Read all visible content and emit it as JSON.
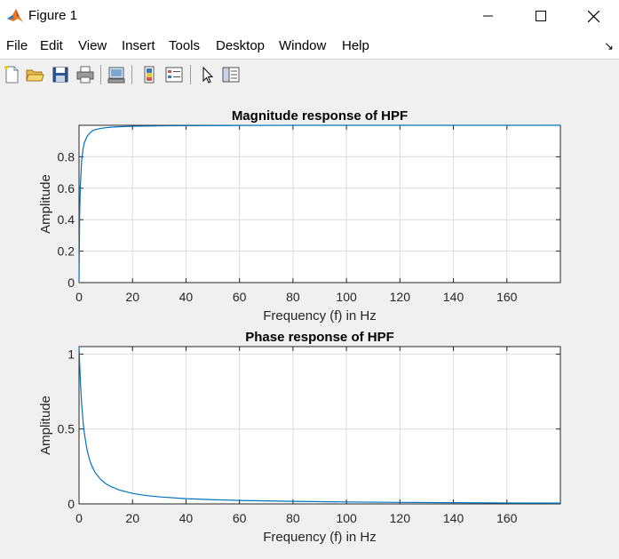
{
  "window": {
    "title": "Figure 1"
  },
  "menu": {
    "items": [
      "File",
      "Edit",
      "View",
      "Insert",
      "Tools",
      "Desktop",
      "Window",
      "Help"
    ]
  },
  "toolbar": {
    "icons": [
      "new-figure-icon",
      "open-file-icon",
      "save-icon",
      "print-icon",
      "link-plot-icon",
      "insert-colorbar-icon",
      "insert-legend-icon",
      "edit-plot-icon",
      "property-inspector-icon"
    ]
  },
  "colors": {
    "line": "#0072bd",
    "grid": "#dcdcdc",
    "axes_bg": "#ffffff",
    "figure_bg": "#f0f0f0"
  },
  "chart_data": [
    {
      "type": "line",
      "title": "Magnitude response of HPF",
      "xlabel": "Frequency (f) in Hz",
      "ylabel": "Amplitude",
      "xlim": [
        0,
        180
      ],
      "ylim": [
        0,
        1
      ],
      "xticks": [
        0,
        20,
        40,
        60,
        80,
        100,
        120,
        140,
        160
      ],
      "yticks": [
        0,
        0.2,
        0.4,
        0.6,
        0.8
      ],
      "ytick_labels": [
        "0",
        "0.2",
        "0.4",
        "0.6",
        "0.8"
      ],
      "grid": true,
      "series": [
        {
          "x": [
            0,
            0.25,
            0.5,
            1,
            1.5,
            2,
            3,
            4,
            5,
            6,
            8,
            10,
            12,
            15,
            20,
            30,
            40,
            60,
            80,
            100,
            120,
            140,
            160,
            180
          ],
          "y": [
            0,
            0.45,
            0.62,
            0.78,
            0.85,
            0.89,
            0.93,
            0.95,
            0.965,
            0.972,
            0.98,
            0.985,
            0.988,
            0.991,
            0.994,
            0.996,
            0.998,
            0.999,
            1,
            1,
            1,
            1,
            1,
            1
          ]
        }
      ]
    },
    {
      "type": "line",
      "title": "Phase response of HPF",
      "xlabel": "Frequency (f) in Hz",
      "ylabel": "Amplitude",
      "xlim": [
        0,
        180
      ],
      "ylim": [
        0,
        1.05
      ],
      "xticks": [
        0,
        20,
        40,
        60,
        80,
        100,
        120,
        140,
        160
      ],
      "yticks": [
        0,
        0.5,
        1
      ],
      "ytick_labels": [
        "0",
        "0.5",
        "1"
      ],
      "grid": true,
      "series": [
        {
          "x": [
            0,
            0.25,
            0.5,
            1,
            1.5,
            2,
            3,
            4,
            5,
            6,
            8,
            10,
            12,
            15,
            20,
            25,
            30,
            40,
            50,
            60,
            80,
            100,
            120,
            140,
            160,
            180
          ],
          "y": [
            1.05,
            0.93,
            0.82,
            0.66,
            0.55,
            0.47,
            0.36,
            0.29,
            0.245,
            0.21,
            0.165,
            0.135,
            0.115,
            0.093,
            0.07,
            0.056,
            0.047,
            0.035,
            0.028,
            0.023,
            0.017,
            0.013,
            0.01,
            0.008,
            0.006,
            0.005
          ]
        }
      ]
    }
  ]
}
